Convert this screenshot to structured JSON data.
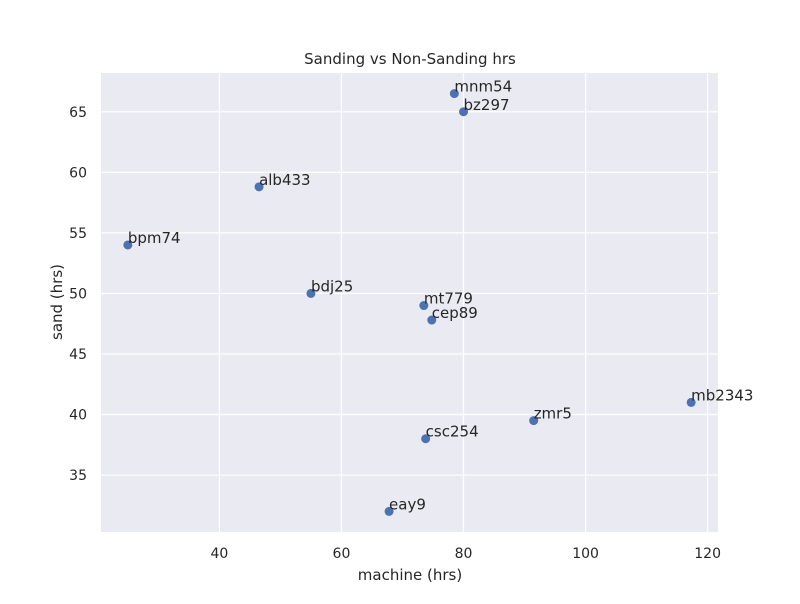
{
  "chart_data": {
    "type": "scatter",
    "title": "Sanding vs Non-Sanding hrs",
    "xlabel": "machine (hrs)",
    "ylabel": "sand (hrs)",
    "xlim": [
      20.6,
      121.7
    ],
    "ylim": [
      30.3,
      68.2
    ],
    "xticks": [
      40,
      60,
      80,
      100,
      120
    ],
    "yticks": [
      35,
      40,
      45,
      50,
      55,
      60,
      65
    ],
    "grid": true,
    "point_color": "#4c72b0",
    "background_color": "#eaeaf2",
    "points": [
      {
        "label": "mnm54",
        "x": 78.5,
        "y": 66.5
      },
      {
        "label": "bz297",
        "x": 80,
        "y": 65
      },
      {
        "label": "alb433",
        "x": 46.5,
        "y": 58.8
      },
      {
        "label": "bpm74",
        "x": 25,
        "y": 54
      },
      {
        "label": "bdj25",
        "x": 55,
        "y": 50
      },
      {
        "label": "mt779",
        "x": 73.5,
        "y": 49
      },
      {
        "label": "cep89",
        "x": 74.8,
        "y": 47.8
      },
      {
        "label": "mb2343",
        "x": 117.3,
        "y": 41
      },
      {
        "label": "zmr5",
        "x": 91.5,
        "y": 39.5
      },
      {
        "label": "csc254",
        "x": 73.8,
        "y": 38
      },
      {
        "label": "eay9",
        "x": 67.8,
        "y": 32
      }
    ]
  }
}
